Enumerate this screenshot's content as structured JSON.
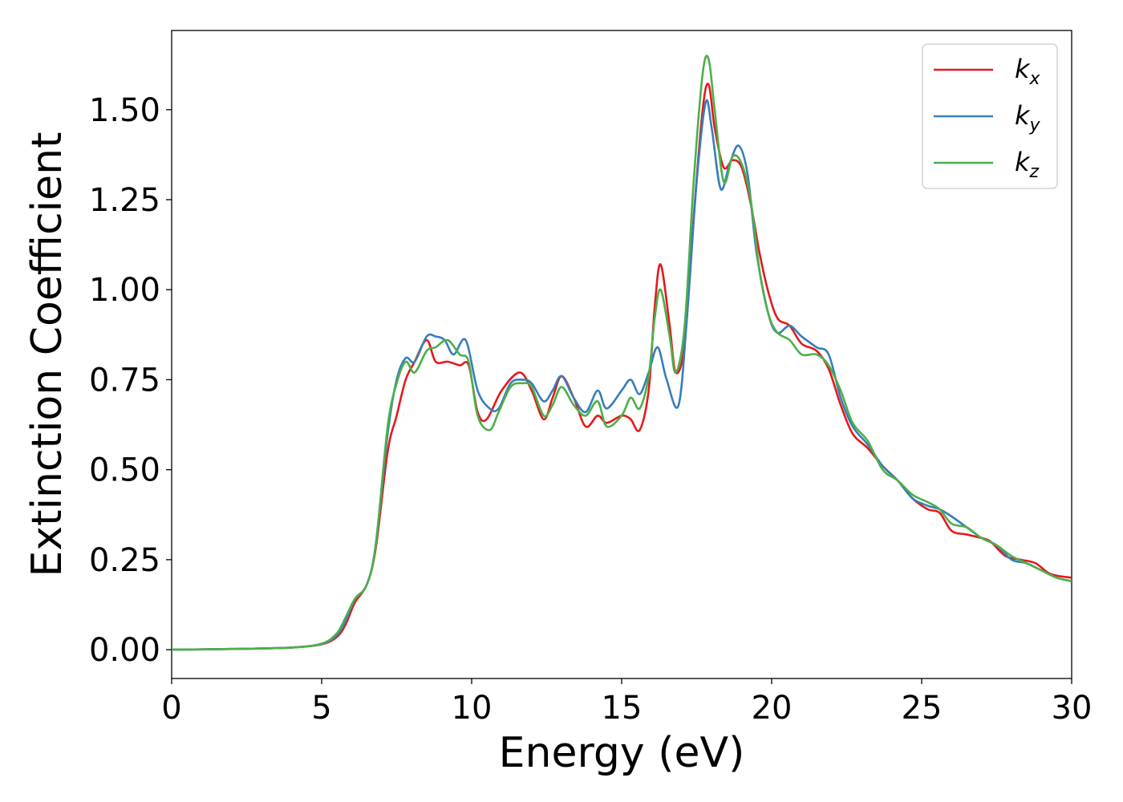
{
  "chart_data": {
    "type": "line",
    "title": "",
    "xlabel": "Energy (eV)",
    "ylabel": "Extinction Coefficient",
    "xlim": [
      0,
      30
    ],
    "ylim": [
      -0.08,
      1.72
    ],
    "xticks": [
      0,
      5,
      10,
      15,
      20,
      25,
      30
    ],
    "xtick_labels": [
      "0",
      "5",
      "10",
      "15",
      "20",
      "25",
      "30"
    ],
    "yticks": [
      0,
      0.25,
      0.5,
      0.75,
      1.0,
      1.25,
      1.5
    ],
    "ytick_labels": [
      "0.00",
      "0.25",
      "0.50",
      "0.75",
      "1.00",
      "1.25",
      "1.50"
    ],
    "grid": false,
    "legend_position": "top-right",
    "series": [
      {
        "name": "k_x",
        "label_main": "k",
        "label_sub": "x",
        "color": "#e41a1c",
        "points": [
          [
            0,
            0
          ],
          [
            2,
            0.002
          ],
          [
            4,
            0.006
          ],
          [
            5,
            0.015
          ],
          [
            5.5,
            0.035
          ],
          [
            5.8,
            0.07
          ],
          [
            6.1,
            0.13
          ],
          [
            6.5,
            0.18
          ],
          [
            6.8,
            0.28
          ],
          [
            7.2,
            0.55
          ],
          [
            7.5,
            0.65
          ],
          [
            7.8,
            0.75
          ],
          [
            8.1,
            0.8
          ],
          [
            8.5,
            0.86
          ],
          [
            8.8,
            0.8
          ],
          [
            9.2,
            0.8
          ],
          [
            9.6,
            0.79
          ],
          [
            9.9,
            0.79
          ],
          [
            10.2,
            0.66
          ],
          [
            10.5,
            0.64
          ],
          [
            11,
            0.72
          ],
          [
            11.6,
            0.77
          ],
          [
            12,
            0.72
          ],
          [
            12.4,
            0.64
          ],
          [
            12.7,
            0.7
          ],
          [
            13,
            0.76
          ],
          [
            13.4,
            0.7
          ],
          [
            13.8,
            0.62
          ],
          [
            14.2,
            0.65
          ],
          [
            14.5,
            0.63
          ],
          [
            15,
            0.65
          ],
          [
            15.3,
            0.64
          ],
          [
            15.6,
            0.61
          ],
          [
            15.9,
            0.72
          ],
          [
            16.1,
            0.95
          ],
          [
            16.3,
            1.07
          ],
          [
            16.6,
            0.9
          ],
          [
            16.8,
            0.77
          ],
          [
            17.1,
            0.85
          ],
          [
            17.4,
            1.2
          ],
          [
            17.7,
            1.5
          ],
          [
            17.9,
            1.57
          ],
          [
            18.1,
            1.45
          ],
          [
            18.4,
            1.34
          ],
          [
            18.7,
            1.36
          ],
          [
            19,
            1.34
          ],
          [
            19.3,
            1.24
          ],
          [
            19.6,
            1.1
          ],
          [
            19.9,
            0.99
          ],
          [
            20.2,
            0.92
          ],
          [
            20.6,
            0.9
          ],
          [
            21,
            0.85
          ],
          [
            21.5,
            0.83
          ],
          [
            21.9,
            0.78
          ],
          [
            22.3,
            0.68
          ],
          [
            22.7,
            0.6
          ],
          [
            23.2,
            0.56
          ],
          [
            23.7,
            0.51
          ],
          [
            24.2,
            0.47
          ],
          [
            24.7,
            0.42
          ],
          [
            25.2,
            0.39
          ],
          [
            25.6,
            0.38
          ],
          [
            26,
            0.33
          ],
          [
            26.5,
            0.32
          ],
          [
            27,
            0.31
          ],
          [
            27.3,
            0.3
          ],
          [
            27.8,
            0.26
          ],
          [
            28.3,
            0.25
          ],
          [
            28.8,
            0.24
          ],
          [
            29.3,
            0.21
          ],
          [
            30,
            0.2
          ]
        ]
      },
      {
        "name": "k_y",
        "label_main": "k",
        "label_sub": "y",
        "color": "#377eb8",
        "points": [
          [
            0,
            0
          ],
          [
            2,
            0.002
          ],
          [
            4,
            0.006
          ],
          [
            5,
            0.016
          ],
          [
            5.5,
            0.04
          ],
          [
            5.8,
            0.08
          ],
          [
            6.1,
            0.14
          ],
          [
            6.5,
            0.18
          ],
          [
            6.8,
            0.29
          ],
          [
            7.2,
            0.6
          ],
          [
            7.5,
            0.75
          ],
          [
            7.8,
            0.81
          ],
          [
            8.1,
            0.8
          ],
          [
            8.5,
            0.87
          ],
          [
            8.8,
            0.87
          ],
          [
            9.1,
            0.86
          ],
          [
            9.4,
            0.82
          ],
          [
            9.8,
            0.86
          ],
          [
            10.2,
            0.72
          ],
          [
            10.6,
            0.67
          ],
          [
            10.9,
            0.67
          ],
          [
            11.3,
            0.74
          ],
          [
            11.7,
            0.75
          ],
          [
            12,
            0.74
          ],
          [
            12.4,
            0.69
          ],
          [
            12.7,
            0.72
          ],
          [
            13,
            0.76
          ],
          [
            13.4,
            0.7
          ],
          [
            13.8,
            0.66
          ],
          [
            14.2,
            0.72
          ],
          [
            14.5,
            0.67
          ],
          [
            15,
            0.72
          ],
          [
            15.3,
            0.75
          ],
          [
            15.6,
            0.71
          ],
          [
            15.9,
            0.77
          ],
          [
            16.2,
            0.84
          ],
          [
            16.5,
            0.75
          ],
          [
            16.9,
            0.68
          ],
          [
            17.2,
            0.95
          ],
          [
            17.5,
            1.3
          ],
          [
            17.8,
            1.52
          ],
          [
            18,
            1.45
          ],
          [
            18.3,
            1.28
          ],
          [
            18.6,
            1.35
          ],
          [
            18.9,
            1.4
          ],
          [
            19.2,
            1.32
          ],
          [
            19.5,
            1.1
          ],
          [
            19.9,
            0.93
          ],
          [
            20.2,
            0.88
          ],
          [
            20.6,
            0.9
          ],
          [
            21,
            0.87
          ],
          [
            21.5,
            0.84
          ],
          [
            21.9,
            0.82
          ],
          [
            22.3,
            0.7
          ],
          [
            22.7,
            0.62
          ],
          [
            23.2,
            0.57
          ],
          [
            23.7,
            0.51
          ],
          [
            24.2,
            0.47
          ],
          [
            24.7,
            0.42
          ],
          [
            25.2,
            0.4
          ],
          [
            25.6,
            0.39
          ],
          [
            26,
            0.37
          ],
          [
            26.5,
            0.34
          ],
          [
            27,
            0.31
          ],
          [
            27.5,
            0.29
          ],
          [
            28,
            0.25
          ],
          [
            28.5,
            0.24
          ],
          [
            29,
            0.22
          ],
          [
            29.5,
            0.2
          ],
          [
            30,
            0.19
          ]
        ]
      },
      {
        "name": "k_z",
        "label_main": "k",
        "label_sub": "z",
        "color": "#4daf4a",
        "points": [
          [
            0,
            0
          ],
          [
            2,
            0.002
          ],
          [
            4,
            0.006
          ],
          [
            5,
            0.017
          ],
          [
            5.5,
            0.045
          ],
          [
            5.8,
            0.09
          ],
          [
            6.1,
            0.14
          ],
          [
            6.5,
            0.18
          ],
          [
            6.8,
            0.29
          ],
          [
            7.2,
            0.62
          ],
          [
            7.5,
            0.74
          ],
          [
            7.8,
            0.8
          ],
          [
            8.1,
            0.77
          ],
          [
            8.5,
            0.83
          ],
          [
            8.8,
            0.84
          ],
          [
            9.2,
            0.86
          ],
          [
            9.6,
            0.82
          ],
          [
            9.9,
            0.8
          ],
          [
            10.2,
            0.65
          ],
          [
            10.6,
            0.61
          ],
          [
            10.9,
            0.66
          ],
          [
            11.3,
            0.73
          ],
          [
            11.7,
            0.74
          ],
          [
            12,
            0.73
          ],
          [
            12.4,
            0.65
          ],
          [
            12.7,
            0.68
          ],
          [
            13,
            0.73
          ],
          [
            13.4,
            0.68
          ],
          [
            13.8,
            0.65
          ],
          [
            14.2,
            0.69
          ],
          [
            14.5,
            0.62
          ],
          [
            15,
            0.65
          ],
          [
            15.3,
            0.7
          ],
          [
            15.6,
            0.67
          ],
          [
            15.9,
            0.76
          ],
          [
            16.1,
            0.92
          ],
          [
            16.3,
            1.0
          ],
          [
            16.6,
            0.87
          ],
          [
            16.8,
            0.77
          ],
          [
            17.1,
            0.9
          ],
          [
            17.4,
            1.3
          ],
          [
            17.7,
            1.6
          ],
          [
            17.9,
            1.64
          ],
          [
            18.1,
            1.5
          ],
          [
            18.4,
            1.3
          ],
          [
            18.7,
            1.37
          ],
          [
            19,
            1.35
          ],
          [
            19.3,
            1.25
          ],
          [
            19.6,
            1.05
          ],
          [
            19.9,
            0.93
          ],
          [
            20.2,
            0.88
          ],
          [
            20.6,
            0.86
          ],
          [
            21,
            0.82
          ],
          [
            21.5,
            0.82
          ],
          [
            21.9,
            0.79
          ],
          [
            22.3,
            0.72
          ],
          [
            22.7,
            0.63
          ],
          [
            23.2,
            0.58
          ],
          [
            23.7,
            0.5
          ],
          [
            24.2,
            0.47
          ],
          [
            24.7,
            0.43
          ],
          [
            25.2,
            0.41
          ],
          [
            25.6,
            0.39
          ],
          [
            26,
            0.35
          ],
          [
            26.5,
            0.34
          ],
          [
            27,
            0.31
          ],
          [
            27.5,
            0.29
          ],
          [
            28,
            0.26
          ],
          [
            28.5,
            0.24
          ],
          [
            29,
            0.22
          ],
          [
            29.5,
            0.2
          ],
          [
            30,
            0.19
          ]
        ]
      }
    ]
  }
}
